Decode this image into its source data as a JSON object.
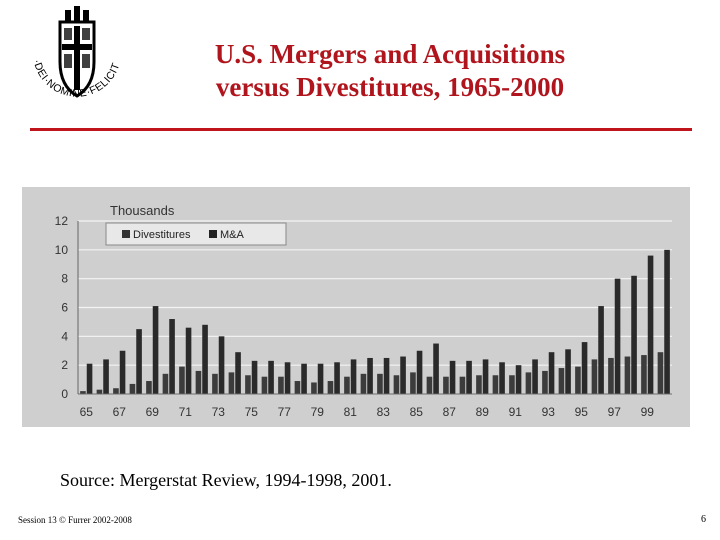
{
  "slide": {
    "title_line1": "U.S. Mergers and Acquisitions",
    "title_line2": "versus Divestitures, 1965-2000",
    "source": "Source: Mergerstat Review, 1994-1998, 2001.",
    "footer_left": "Session 13 © Furrer 2002-2008",
    "page_number": "6",
    "accent_color": "#b0141c"
  },
  "logo": {
    "icon": "university-seal-icon",
    "motto": "IN·DEI·NOMINE·FELICITER"
  },
  "chart_data": {
    "type": "bar",
    "title": "Thousands",
    "x": [
      1965,
      1966,
      1967,
      1968,
      1969,
      1970,
      1971,
      1972,
      1973,
      1974,
      1975,
      1976,
      1977,
      1978,
      1979,
      1980,
      1981,
      1982,
      1983,
      1984,
      1985,
      1986,
      1987,
      1988,
      1989,
      1990,
      1991,
      1992,
      1993,
      1994,
      1995,
      1996,
      1997,
      1998,
      1999,
      2000
    ],
    "tick_labels": [
      "65",
      "67",
      "69",
      "71",
      "73",
      "75",
      "77",
      "79",
      "81",
      "83",
      "85",
      "87",
      "89",
      "91",
      "93",
      "95",
      "97",
      "99"
    ],
    "series": [
      {
        "name": "Divestitures",
        "values": [
          0.2,
          0.3,
          0.4,
          0.7,
          0.9,
          1.4,
          1.9,
          1.6,
          1.4,
          1.5,
          1.3,
          1.2,
          1.2,
          0.9,
          0.8,
          0.9,
          1.2,
          1.4,
          1.4,
          1.3,
          1.5,
          1.2,
          1.2,
          1.2,
          1.3,
          1.3,
          1.3,
          1.5,
          1.6,
          1.8,
          1.9,
          2.4,
          2.5,
          2.6,
          2.7,
          2.9
        ]
      },
      {
        "name": "M&A",
        "values": [
          2.1,
          2.4,
          3.0,
          4.5,
          6.1,
          5.2,
          4.6,
          4.8,
          4.0,
          2.9,
          2.3,
          2.3,
          2.2,
          2.1,
          2.1,
          2.2,
          2.4,
          2.5,
          2.5,
          2.6,
          3.0,
          3.5,
          2.3,
          2.3,
          2.4,
          2.2,
          2.0,
          2.4,
          2.9,
          3.1,
          3.6,
          6.1,
          8.0,
          8.2,
          9.6,
          10.0
        ]
      }
    ],
    "ylim": [
      0,
      12
    ],
    "yticks": [
      0,
      2,
      4,
      6,
      8,
      10,
      12
    ],
    "grid": true,
    "legend_position": "top-left",
    "colors": {
      "Divestitures": "#3c3c3c",
      "M&A": "#2a2a2a",
      "background": "#cfcfcf",
      "grid": "#f4f4f4"
    }
  }
}
